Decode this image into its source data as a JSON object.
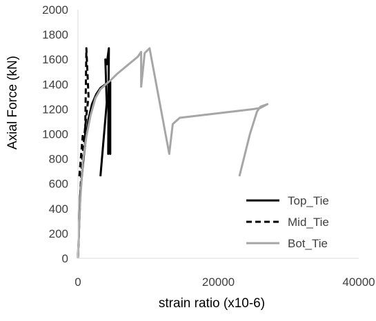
{
  "chart_data": {
    "type": "line",
    "title": "",
    "xlabel": "strain ratio (x10-6)",
    "ylabel": "Axial Force (kN)",
    "xlim": [
      0,
      40000
    ],
    "ylim": [
      0,
      2000
    ],
    "x_ticks": [
      0,
      20000,
      40000
    ],
    "y_ticks": [
      0,
      200,
      400,
      600,
      800,
      1000,
      1200,
      1400,
      1600,
      1800,
      2000
    ],
    "grid": false,
    "legend_position": "bottom-right",
    "series": [
      {
        "name": "Top_Tie",
        "color": "#000000",
        "style": "solid",
        "points": [
          [
            0,
            0
          ],
          [
            300,
            500
          ],
          [
            700,
            750
          ],
          [
            1100,
            950
          ],
          [
            1500,
            1120
          ],
          [
            2000,
            1240
          ],
          [
            2600,
            1320
          ],
          [
            3200,
            1370
          ],
          [
            3800,
            1395
          ],
          [
            4400,
            1410
          ],
          [
            4600,
            1420
          ],
          [
            4600,
            840
          ],
          [
            4400,
            1240
          ],
          [
            4300,
            840
          ],
          [
            4400,
            1690
          ],
          [
            4100,
            1560
          ],
          [
            3900,
            1600
          ],
          [
            4100,
            1250
          ],
          [
            3200,
            660
          ]
        ]
      },
      {
        "name": "Mid_Tie",
        "color": "#000000",
        "style": "dashed",
        "points": [
          [
            0,
            0
          ],
          [
            200,
            300
          ],
          [
            400,
            600
          ],
          [
            700,
            860
          ],
          [
            1000,
            1040
          ],
          [
            1300,
            1200
          ],
          [
            1500,
            1300
          ],
          [
            1200,
            1690
          ],
          [
            1000,
            900
          ],
          [
            700,
            1000
          ],
          [
            200,
            660
          ]
        ]
      },
      {
        "name": "Bot_Tie",
        "color": "#a6a6a6",
        "style": "solid",
        "points": [
          [
            0,
            0
          ],
          [
            300,
            450
          ],
          [
            700,
            780
          ],
          [
            1200,
            980
          ],
          [
            1800,
            1150
          ],
          [
            2500,
            1290
          ],
          [
            3200,
            1360
          ],
          [
            4000,
            1400
          ],
          [
            4800,
            1440
          ],
          [
            5500,
            1480
          ],
          [
            7000,
            1550
          ],
          [
            8500,
            1620
          ],
          [
            9000,
            1660
          ],
          [
            9000,
            1380
          ],
          [
            9500,
            1650
          ],
          [
            10200,
            1690
          ],
          [
            13000,
            840
          ],
          [
            13500,
            1080
          ],
          [
            14500,
            1130
          ],
          [
            25000,
            1200
          ],
          [
            26000,
            1210
          ],
          [
            27000,
            1240
          ],
          [
            26000,
            1220
          ],
          [
            25500,
            1180
          ],
          [
            24500,
            1000
          ],
          [
            23000,
            660
          ]
        ]
      }
    ]
  }
}
